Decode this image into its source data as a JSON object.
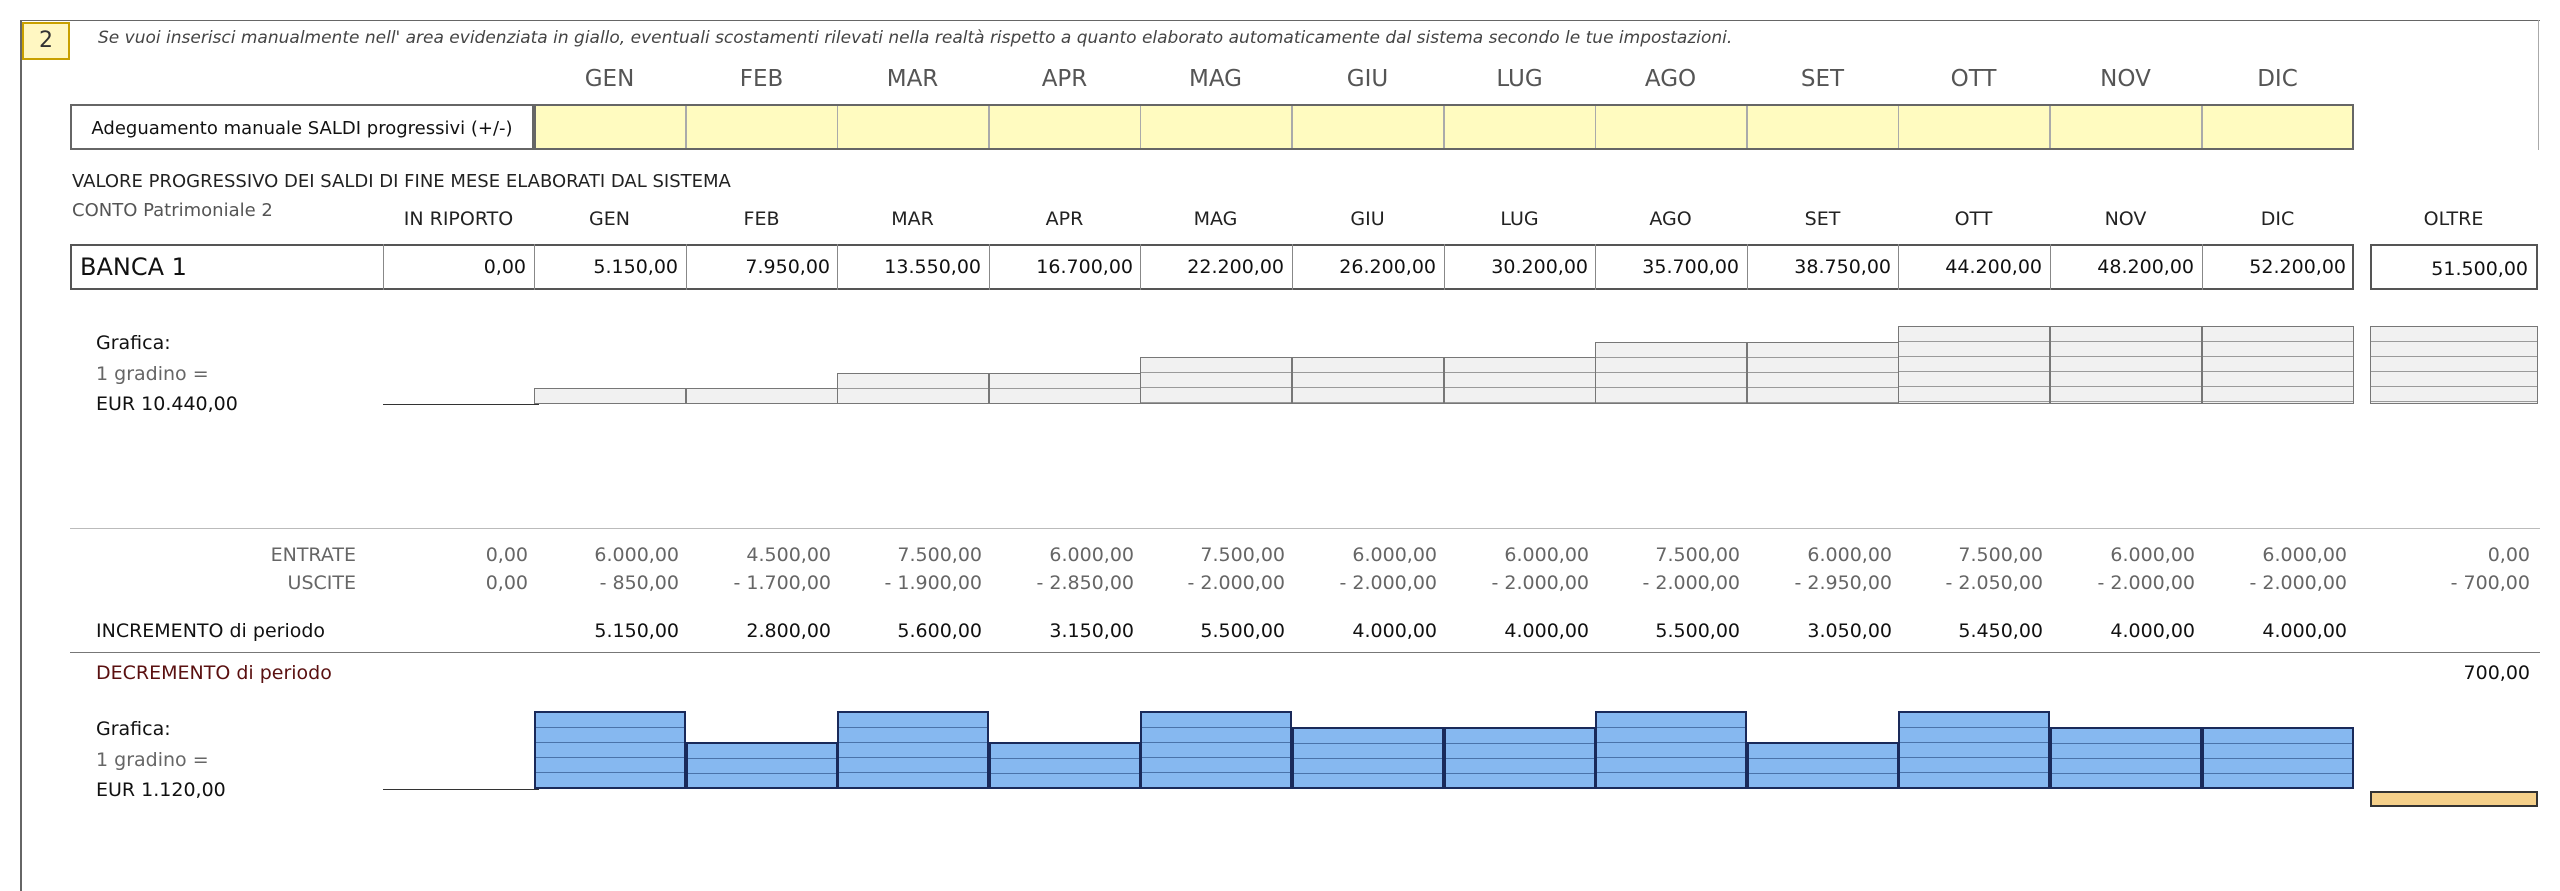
{
  "section_number": "2",
  "instruction": "Se vuoi inserisci manualmente nell' area evidenziata in giallo, eventuali scostamenti rilevati nella realtà rispetto a quanto elaborato automaticamente dal sistema secondo le tue impostazioni.",
  "months": [
    "GEN",
    "FEB",
    "MAR",
    "APR",
    "MAG",
    "GIU",
    "LUG",
    "AGO",
    "SET",
    "OTT",
    "NOV",
    "DIC"
  ],
  "adjustment": {
    "label": "Adeguamento manuale SALDI progressivi (+/-)",
    "values": [
      "",
      "",
      "",
      "",
      "",
      "",
      "",
      "",
      "",
      "",
      "",
      ""
    ]
  },
  "balances_section": {
    "title": "VALORE PROGRESSIVO DEI SALDI DI FINE MESE ELABORATI DAL SISTEMA",
    "account": "CONTO Patrimoniale 2",
    "col_in_riporto": "IN RIPORTO",
    "col_oltre": "OLTRE",
    "bank_name": "BANCA 1",
    "in_riporto": "0,00",
    "monthly": [
      "5.150,00",
      "7.950,00",
      "13.550,00",
      "16.700,00",
      "22.200,00",
      "26.200,00",
      "30.200,00",
      "35.700,00",
      "38.750,00",
      "44.200,00",
      "48.200,00",
      "52.200,00"
    ],
    "oltre": "51.500,00"
  },
  "chart_balance": {
    "label_title": "Grafica:",
    "label_step": "1 gradino =",
    "label_value": "EUR 10.440,00",
    "step_value": 10440,
    "steps": [
      0,
      1,
      1,
      2,
      2,
      3,
      3,
      3,
      4,
      4,
      5,
      5,
      5
    ],
    "oltre_steps": 5,
    "bar_color": "#f1f1f1"
  },
  "flows": {
    "entrate_label": "ENTRATE",
    "uscite_label": "USCITE",
    "entrate": [
      "0,00",
      "6.000,00",
      "4.500,00",
      "7.500,00",
      "6.000,00",
      "7.500,00",
      "6.000,00",
      "6.000,00",
      "7.500,00",
      "6.000,00",
      "7.500,00",
      "6.000,00",
      "6.000,00",
      "0,00"
    ],
    "uscite": [
      "0,00",
      "- 850,00",
      "- 1.700,00",
      "- 1.900,00",
      "- 2.850,00",
      "- 2.000,00",
      "- 2.000,00",
      "- 2.000,00",
      "- 2.000,00",
      "- 2.950,00",
      "- 2.050,00",
      "- 2.000,00",
      "- 2.000,00",
      "- 700,00"
    ],
    "increment_label": "INCREMENTO di periodo",
    "increment": [
      "5.150,00",
      "2.800,00",
      "5.600,00",
      "3.150,00",
      "5.500,00",
      "4.000,00",
      "4.000,00",
      "5.500,00",
      "3.050,00",
      "5.450,00",
      "4.000,00",
      "4.000,00"
    ],
    "decrement_label": "DECREMENTO di periodo",
    "decrement_oltre": "700,00"
  },
  "chart_increment": {
    "label_title": "Grafica:",
    "label_step": "1 gradino =",
    "label_value": "EUR 1.120,00",
    "step_value": 1120,
    "steps": [
      5,
      3,
      5,
      3,
      5,
      4,
      4,
      5,
      3,
      5,
      4,
      4
    ],
    "oltre_decrement_steps": 1,
    "bar_color": "#86b8f0",
    "decrement_color": "#f5d08a"
  }
}
